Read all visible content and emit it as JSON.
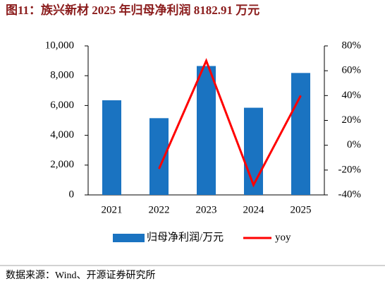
{
  "chart_data": {
    "type": "bar-line",
    "title": "图11：族兴新材 2025 年归母净利润 8182.91 万元",
    "categories": [
      "2021",
      "2022",
      "2023",
      "2024",
      "2025"
    ],
    "series": [
      {
        "name": "归母净利润/万元",
        "color": "#1a73c1",
        "type": "bar",
        "values": [
          6350,
          5150,
          8650,
          5850,
          8182.91
        ]
      },
      {
        "name": "yoy",
        "color": "#ff0000",
        "type": "line",
        "axis": "y2",
        "values": [
          null,
          -19,
          68,
          -32,
          40
        ]
      }
    ],
    "ylim": [
      0,
      10000
    ],
    "yticks": [
      0,
      {
        "value": 2000,
        "label": "2,000"
      },
      {
        "value": 4000,
        "label": "4,000"
      },
      {
        "value": 6000,
        "label": "6,000"
      },
      {
        "value": 8000,
        "label": "8,000"
      },
      {
        "value": 10000,
        "label": "10,000"
      }
    ],
    "y2lim": [
      -40,
      80
    ],
    "y2ticks": [
      {
        "value": -40,
        "label": "-40%"
      },
      {
        "value": -20,
        "label": "-20%"
      },
      {
        "value": 0,
        "label": "0%"
      },
      {
        "value": 20,
        "label": "20%"
      },
      {
        "value": 40,
        "label": "40%"
      },
      {
        "value": 60,
        "label": "60%"
      },
      {
        "value": 80,
        "label": "80%"
      }
    ],
    "grid": false,
    "legend": "bottom",
    "source": "数据来源：Wind、开源证券研究所"
  }
}
